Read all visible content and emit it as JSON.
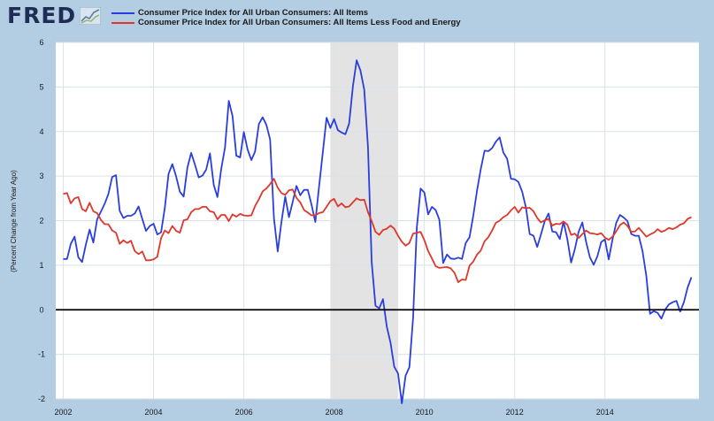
{
  "header": {
    "logo_text": "FRED",
    "logo_icon": "line-chart-icon"
  },
  "colors": {
    "background": "#b3cde3",
    "plot_area": "#ffffff",
    "gridline": "#d9e1ea",
    "recession": "#e3e3e3",
    "series_all_items": "#2a3ee0",
    "series_core": "#e0372a",
    "zero_line": "#000000"
  },
  "chart_data": {
    "type": "line",
    "title": "",
    "xlabel": "",
    "ylabel": "(Percent Change from Year Ago)",
    "xlim": [
      2001.833,
      2016.083
    ],
    "ylim": [
      -2,
      6
    ],
    "x_ticks": [
      2002,
      2004,
      2006,
      2008,
      2010,
      2012,
      2014
    ],
    "x_tick_labels": [
      "2002",
      "2004",
      "2006",
      "2008",
      "2010",
      "2012",
      "2014"
    ],
    "y_ticks": [
      -2,
      -1,
      0,
      1,
      2,
      3,
      4,
      5,
      6
    ],
    "y_tick_labels": [
      "-2",
      "-1",
      "0",
      "1",
      "2",
      "3",
      "4",
      "5",
      "6"
    ],
    "grid": true,
    "reference_line": 0,
    "recession_shading": [
      [
        2007.917,
        2009.417
      ]
    ],
    "legend_position": "top-left",
    "series": [
      {
        "name": "Consumer Price Index for All Urban Consumers: All Items",
        "x": [
          2002.0,
          2002.083,
          2002.167,
          2002.25,
          2002.333,
          2002.417,
          2002.5,
          2002.583,
          2002.667,
          2002.75,
          2002.833,
          2002.917,
          2003.0,
          2003.083,
          2003.167,
          2003.25,
          2003.333,
          2003.417,
          2003.5,
          2003.583,
          2003.667,
          2003.75,
          2003.833,
          2003.917,
          2004.0,
          2004.083,
          2004.167,
          2004.25,
          2004.333,
          2004.417,
          2004.5,
          2004.583,
          2004.667,
          2004.75,
          2004.833,
          2004.917,
          2005.0,
          2005.083,
          2005.167,
          2005.25,
          2005.333,
          2005.417,
          2005.5,
          2005.583,
          2005.667,
          2005.75,
          2005.833,
          2005.917,
          2006.0,
          2006.083,
          2006.167,
          2006.25,
          2006.333,
          2006.417,
          2006.5,
          2006.583,
          2006.667,
          2006.75,
          2006.833,
          2006.917,
          2007.0,
          2007.083,
          2007.167,
          2007.25,
          2007.333,
          2007.417,
          2007.5,
          2007.583,
          2007.667,
          2007.75,
          2007.833,
          2007.917,
          2008.0,
          2008.083,
          2008.167,
          2008.25,
          2008.333,
          2008.417,
          2008.5,
          2008.583,
          2008.667,
          2008.75,
          2008.833,
          2008.917,
          2009.0,
          2009.083,
          2009.167,
          2009.25,
          2009.333,
          2009.417,
          2009.5,
          2009.583,
          2009.667,
          2009.75,
          2009.833,
          2009.917,
          2010.0,
          2010.083,
          2010.167,
          2010.25,
          2010.333,
          2010.417,
          2010.5,
          2010.583,
          2010.667,
          2010.75,
          2010.833,
          2010.917,
          2011.0,
          2011.083,
          2011.167,
          2011.25,
          2011.333,
          2011.417,
          2011.5,
          2011.583,
          2011.667,
          2011.75,
          2011.833,
          2011.917,
          2012.0,
          2012.083,
          2012.167,
          2012.25,
          2012.333,
          2012.417,
          2012.5,
          2012.583,
          2012.667,
          2012.75,
          2012.833,
          2012.917,
          2013.0,
          2013.083,
          2013.167,
          2013.25,
          2013.333,
          2013.417,
          2013.5,
          2013.583,
          2013.667,
          2013.75,
          2013.833,
          2013.917,
          2014.0,
          2014.083,
          2014.167,
          2014.25,
          2014.333,
          2014.417,
          2014.5,
          2014.583,
          2014.667,
          2014.75,
          2014.833,
          2014.917,
          2015.0,
          2015.083,
          2015.167,
          2015.25,
          2015.333,
          2015.417,
          2015.5,
          2015.583,
          2015.667,
          2015.75,
          2015.833,
          2015.917
        ],
        "values": [
          1.14,
          1.14,
          1.48,
          1.64,
          1.18,
          1.07,
          1.46,
          1.8,
          1.51,
          2.03,
          2.2,
          2.38,
          2.6,
          2.98,
          3.02,
          2.22,
          2.06,
          2.11,
          2.11,
          2.16,
          2.32,
          2.04,
          1.77,
          1.88,
          1.93,
          1.69,
          1.74,
          2.29,
          3.05,
          3.27,
          2.99,
          2.65,
          2.54,
          3.19,
          3.52,
          3.26,
          2.97,
          3.01,
          3.15,
          3.51,
          2.8,
          2.53,
          3.17,
          3.64,
          4.69,
          4.35,
          3.46,
          3.42,
          3.99,
          3.6,
          3.36,
          3.55,
          4.17,
          4.32,
          4.15,
          3.82,
          2.06,
          1.31,
          1.97,
          2.54,
          2.08,
          2.42,
          2.78,
          2.57,
          2.69,
          2.69,
          2.36,
          1.97,
          2.76,
          3.54,
          4.31,
          4.08,
          4.28,
          4.03,
          3.98,
          3.94,
          4.18,
          5.02,
          5.6,
          5.37,
          4.94,
          3.66,
          1.07,
          0.09,
          0.03,
          0.24,
          -0.38,
          -0.74,
          -1.28,
          -1.43,
          -2.1,
          -1.48,
          -1.29,
          -0.18,
          1.84,
          2.72,
          2.63,
          2.14,
          2.31,
          2.24,
          2.02,
          1.05,
          1.24,
          1.15,
          1.14,
          1.17,
          1.14,
          1.5,
          1.63,
          2.11,
          2.68,
          3.16,
          3.57,
          3.56,
          3.63,
          3.77,
          3.87,
          3.53,
          3.39,
          2.94,
          2.93,
          2.87,
          2.65,
          2.3,
          1.7,
          1.66,
          1.41,
          1.69,
          1.99,
          2.16,
          1.76,
          1.74,
          1.59,
          1.98,
          1.59,
          1.06,
          1.36,
          1.75,
          1.96,
          1.52,
          1.18,
          1.01,
          1.2,
          1.52,
          1.58,
          1.13,
          1.58,
          1.95,
          2.13,
          2.07,
          1.99,
          1.7,
          1.66,
          1.66,
          1.32,
          0.76,
          -0.09,
          -0.03,
          -0.07,
          -0.2,
          0.0,
          0.12,
          0.17,
          0.2,
          -0.04,
          0.17,
          0.5,
          0.73
        ]
      },
      {
        "name": "Consumer Price Index for All Urban Consumers: All Items Less Food and Energy",
        "x": [
          2002.0,
          2002.083,
          2002.167,
          2002.25,
          2002.333,
          2002.417,
          2002.5,
          2002.583,
          2002.667,
          2002.75,
          2002.833,
          2002.917,
          2003.0,
          2003.083,
          2003.167,
          2003.25,
          2003.333,
          2003.417,
          2003.5,
          2003.583,
          2003.667,
          2003.75,
          2003.833,
          2003.917,
          2004.0,
          2004.083,
          2004.167,
          2004.25,
          2004.333,
          2004.417,
          2004.5,
          2004.583,
          2004.667,
          2004.75,
          2004.833,
          2004.917,
          2005.0,
          2005.083,
          2005.167,
          2005.25,
          2005.333,
          2005.417,
          2005.5,
          2005.583,
          2005.667,
          2005.75,
          2005.833,
          2005.917,
          2006.0,
          2006.083,
          2006.167,
          2006.25,
          2006.333,
          2006.417,
          2006.5,
          2006.583,
          2006.667,
          2006.75,
          2006.833,
          2006.917,
          2007.0,
          2007.083,
          2007.167,
          2007.25,
          2007.333,
          2007.417,
          2007.5,
          2007.583,
          2007.667,
          2007.75,
          2007.833,
          2007.917,
          2008.0,
          2008.083,
          2008.167,
          2008.25,
          2008.333,
          2008.417,
          2008.5,
          2008.583,
          2008.667,
          2008.75,
          2008.833,
          2008.917,
          2009.0,
          2009.083,
          2009.167,
          2009.25,
          2009.333,
          2009.417,
          2009.5,
          2009.583,
          2009.667,
          2009.75,
          2009.833,
          2009.917,
          2010.0,
          2010.083,
          2010.167,
          2010.25,
          2010.333,
          2010.417,
          2010.5,
          2010.583,
          2010.667,
          2010.75,
          2010.833,
          2010.917,
          2011.0,
          2011.083,
          2011.167,
          2011.25,
          2011.333,
          2011.417,
          2011.5,
          2011.583,
          2011.667,
          2011.75,
          2011.833,
          2011.917,
          2012.0,
          2012.083,
          2012.167,
          2012.25,
          2012.333,
          2012.417,
          2012.5,
          2012.583,
          2012.667,
          2012.75,
          2012.833,
          2012.917,
          2013.0,
          2013.083,
          2013.167,
          2013.25,
          2013.333,
          2013.417,
          2013.5,
          2013.583,
          2013.667,
          2013.75,
          2013.833,
          2013.917,
          2014.0,
          2014.083,
          2014.167,
          2014.25,
          2014.333,
          2014.417,
          2014.5,
          2014.583,
          2014.667,
          2014.75,
          2014.833,
          2014.917,
          2015.0,
          2015.083,
          2015.167,
          2015.25,
          2015.333,
          2015.417,
          2015.5,
          2015.583,
          2015.667,
          2015.75,
          2015.833,
          2015.917
        ],
        "values": [
          2.6,
          2.62,
          2.39,
          2.5,
          2.53,
          2.26,
          2.21,
          2.4,
          2.21,
          2.17,
          2.02,
          1.92,
          1.92,
          1.78,
          1.73,
          1.48,
          1.56,
          1.5,
          1.55,
          1.32,
          1.25,
          1.31,
          1.11,
          1.11,
          1.13,
          1.19,
          1.61,
          1.78,
          1.72,
          1.88,
          1.77,
          1.73,
          2.01,
          2.03,
          2.19,
          2.26,
          2.26,
          2.31,
          2.31,
          2.21,
          2.19,
          2.03,
          2.13,
          2.13,
          1.99,
          2.14,
          2.09,
          2.15,
          2.12,
          2.11,
          2.12,
          2.33,
          2.48,
          2.66,
          2.72,
          2.82,
          2.94,
          2.74,
          2.62,
          2.58,
          2.68,
          2.7,
          2.51,
          2.41,
          2.24,
          2.18,
          2.12,
          2.12,
          2.17,
          2.19,
          2.31,
          2.44,
          2.49,
          2.32,
          2.39,
          2.3,
          2.32,
          2.41,
          2.5,
          2.46,
          2.47,
          2.19,
          1.99,
          1.75,
          1.68,
          1.79,
          1.82,
          1.89,
          1.82,
          1.66,
          1.53,
          1.44,
          1.5,
          1.71,
          1.73,
          1.75,
          1.56,
          1.32,
          1.15,
          0.98,
          0.94,
          0.95,
          0.96,
          0.93,
          0.83,
          0.62,
          0.68,
          0.67,
          0.99,
          1.08,
          1.24,
          1.33,
          1.54,
          1.63,
          1.78,
          1.95,
          2.0,
          2.08,
          2.13,
          2.23,
          2.31,
          2.18,
          2.3,
          2.28,
          2.29,
          2.21,
          2.06,
          1.96,
          2.01,
          2.04,
          1.89,
          1.93,
          1.92,
          1.98,
          1.91,
          1.68,
          1.71,
          1.61,
          1.7,
          1.78,
          1.72,
          1.71,
          1.69,
          1.72,
          1.62,
          1.57,
          1.64,
          1.76,
          1.9,
          1.96,
          1.88,
          1.75,
          1.76,
          1.84,
          1.74,
          1.64,
          1.69,
          1.73,
          1.81,
          1.75,
          1.78,
          1.84,
          1.81,
          1.85,
          1.91,
          1.94,
          2.04,
          2.08
        ]
      }
    ]
  }
}
